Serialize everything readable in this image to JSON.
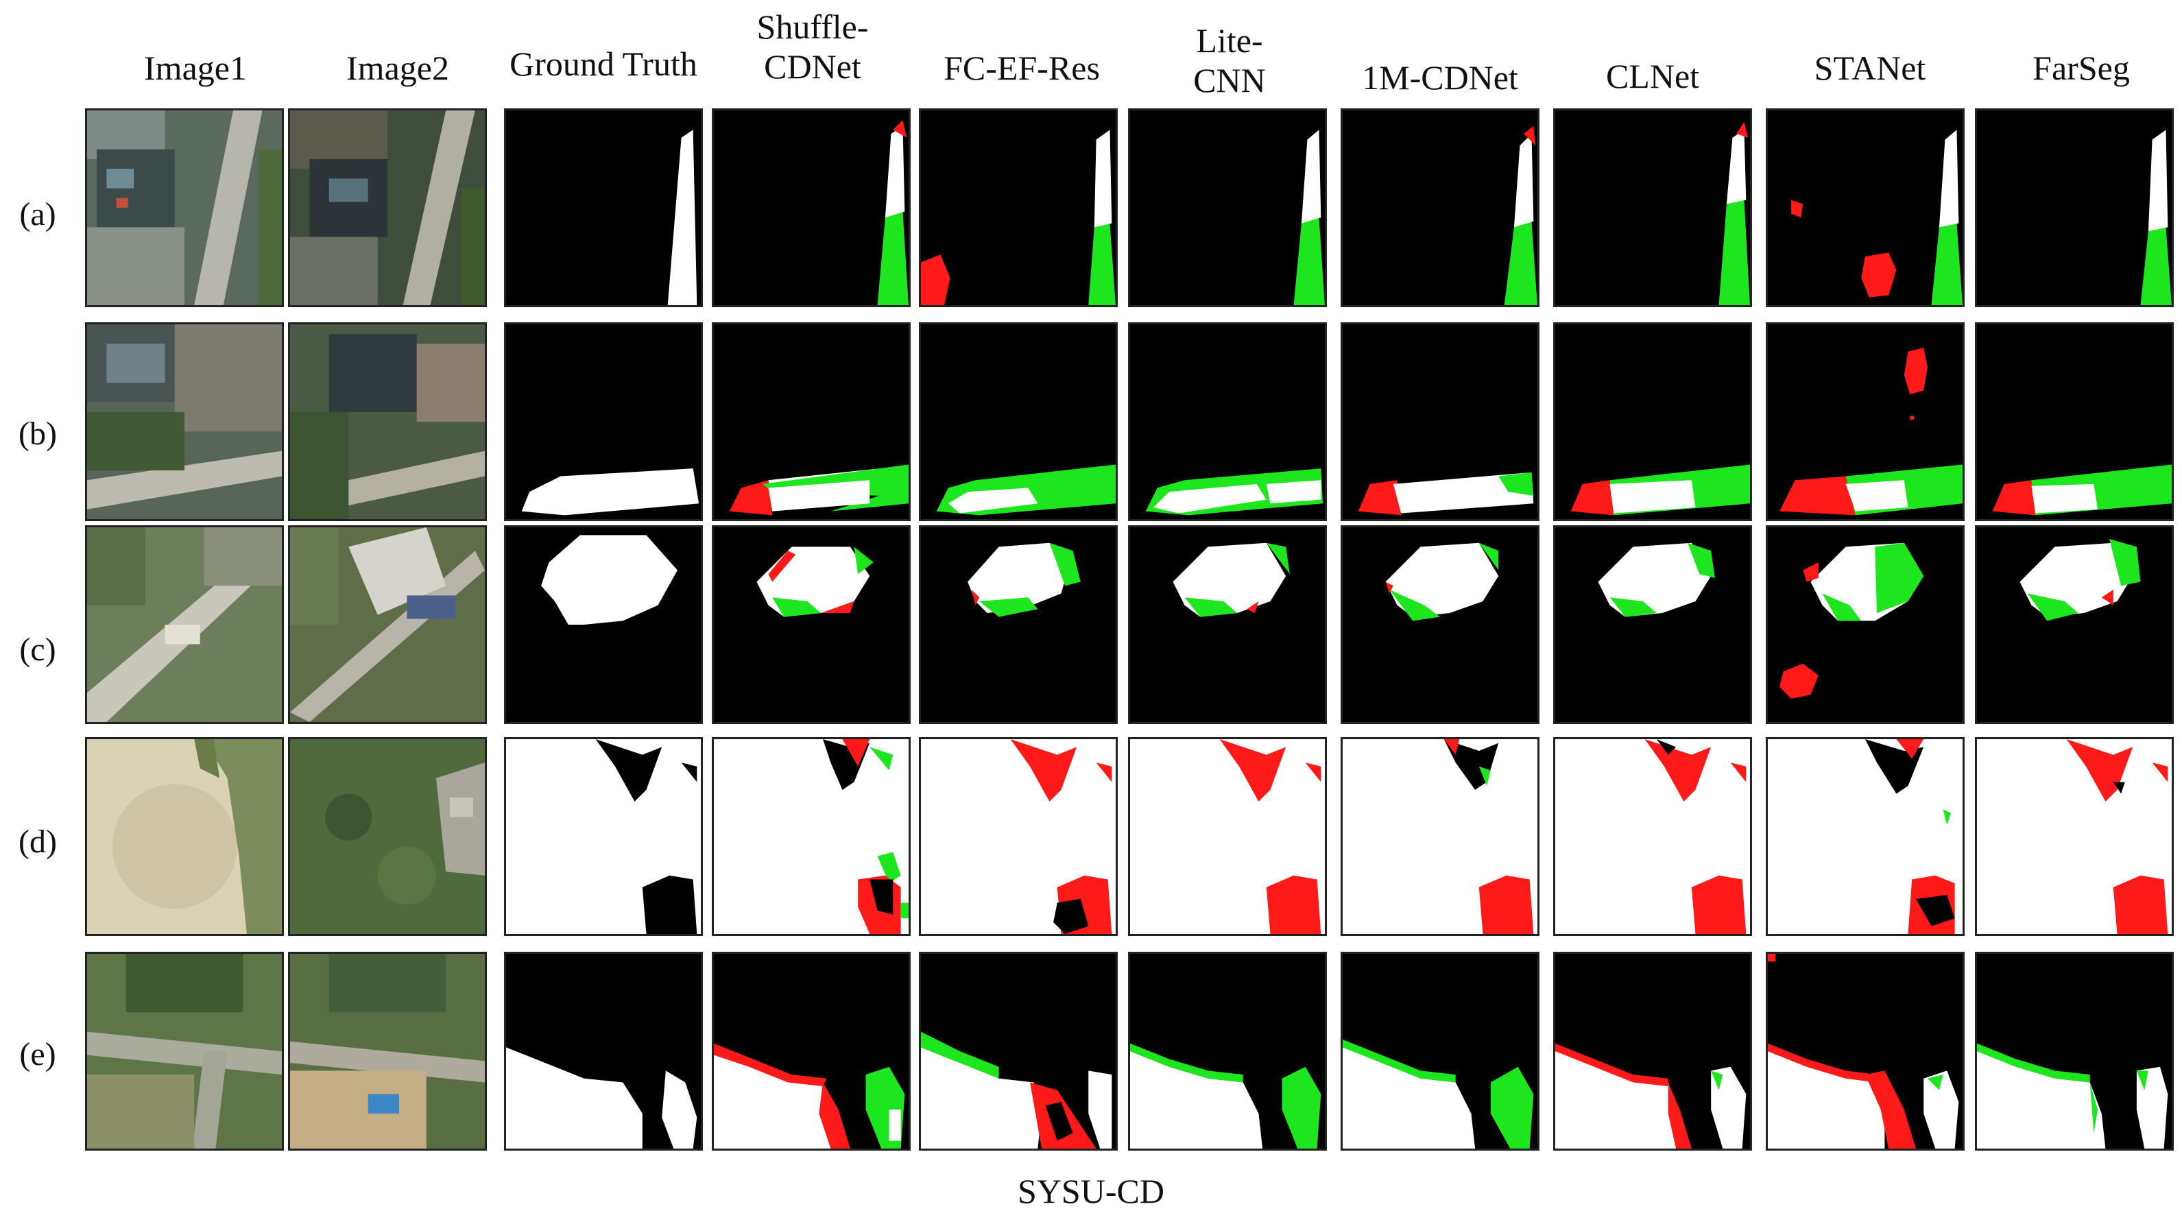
{
  "columns": {
    "image1": "Image1",
    "image2": "Image2",
    "ground_truth": "Ground Truth",
    "shufflecdnet": [
      "Shuffle-",
      "CDNet"
    ],
    "fcefres": "FC-EF-Res",
    "litecnn": [
      "Lite-",
      "CNN"
    ],
    "onemcdnet": "1M-CDNet",
    "clnet": "CLNet",
    "stanet": "STANet",
    "farseg": "FarSeg"
  },
  "rows": [
    "(a)",
    "(b)",
    "(c)",
    "(d)",
    "(e)"
  ],
  "caption": "SYSU-CD",
  "legend_colors": {
    "changed": "#ffffff",
    "unchanged": "#000000",
    "false_positive": "#ff1a1a",
    "false_negative": "#1ee61e"
  }
}
